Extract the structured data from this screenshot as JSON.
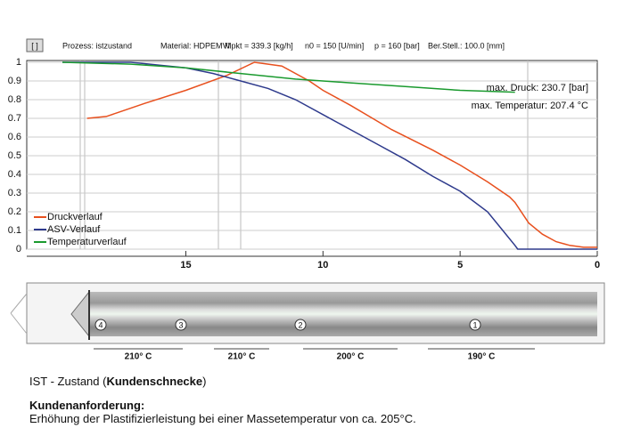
{
  "chart_data": {
    "type": "line",
    "info": [
      "[ ]",
      "Prozess: istzustand",
      "Material: HDPEMVI",
      "Mpkt = 339.3 [kg/h]",
      "n0 = 150 [U/min]",
      "p = 160 [bar]",
      "Ber.Stell.: 100.0 [mm]"
    ],
    "annotations": [
      "max. Druck: 230.7 [bar]",
      "max. Temperatur: 207.4 °C"
    ],
    "xlim": [
      20.8,
      0
    ],
    "xticks": [
      15,
      10,
      5,
      0
    ],
    "ylim": [
      0,
      1
    ],
    "yticks": [
      0,
      0.1,
      0.2,
      0.3,
      0.4,
      0.5,
      0.6,
      0.7,
      0.8,
      0.9,
      1
    ],
    "grid": true,
    "legend": "lower left",
    "series": [
      {
        "name": "Druckverlauf",
        "color": "#e8501e",
        "x": [
          18.6,
          17.9,
          16.5,
          15,
          13.5,
          12.5,
          11.5,
          10.5,
          10,
          9,
          7.5,
          6,
          5,
          4,
          3.2,
          3,
          2.5,
          2,
          1.5,
          1,
          0.5,
          0
        ],
        "values": [
          0.7,
          0.71,
          0.78,
          0.85,
          0.93,
          1.0,
          0.98,
          0.9,
          0.85,
          0.77,
          0.64,
          0.53,
          0.45,
          0.36,
          0.28,
          0.25,
          0.14,
          0.08,
          0.04,
          0.02,
          0.01,
          0.01
        ]
      },
      {
        "name": "ASV-Verlauf",
        "color": "#2e3a8c",
        "x": [
          19.5,
          17,
          15,
          14,
          13,
          12,
          11,
          10,
          9,
          8,
          7,
          6,
          5,
          4,
          3,
          2.9,
          0
        ],
        "values": [
          1,
          1,
          0.97,
          0.94,
          0.9,
          0.86,
          0.8,
          0.72,
          0.64,
          0.56,
          0.48,
          0.39,
          0.31,
          0.2,
          0.02,
          0,
          0
        ]
      },
      {
        "name": "Temperaturverlauf",
        "color": "#1a9a2e",
        "x": [
          19.5,
          17,
          15,
          13,
          11,
          9,
          7,
          5,
          3
        ],
        "values": [
          1,
          0.99,
          0.97,
          0.94,
          0.91,
          0.89,
          0.87,
          0.85,
          0.84
        ]
      }
    ]
  },
  "screw": {
    "sections": [
      "4",
      "3",
      "2",
      "1"
    ],
    "zones": [
      "210° C",
      "210° C",
      "200° C",
      "190° C"
    ]
  },
  "caption": {
    "prefix": "IST - Zustand (",
    "bold": "Kundenschnecke",
    "suffix": ")",
    "heading": "Kundenanforderung:",
    "text": "Erhöhung der Plastifizierleistung bei einer Massetemperatur von ca. 205°C."
  }
}
